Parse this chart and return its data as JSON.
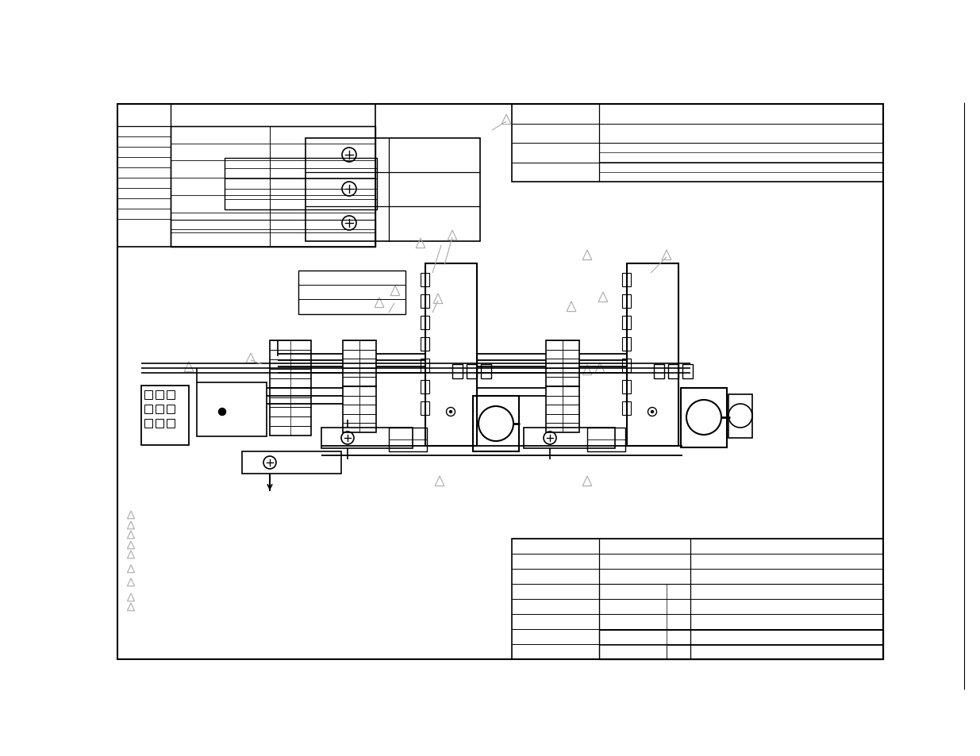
{
  "bg_color": "#ffffff",
  "lc": "#000000",
  "gray": "#aaaaaa",
  "fig_width": 12.35,
  "fig_height": 9.54,
  "dpi": 100
}
